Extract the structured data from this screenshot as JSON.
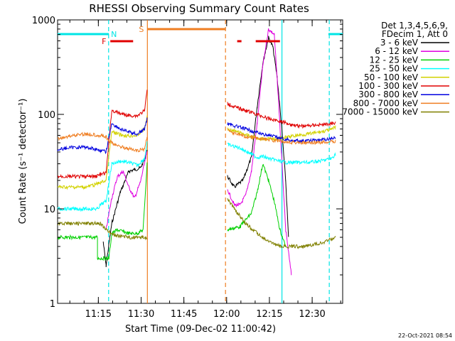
{
  "chart_data": {
    "type": "line",
    "title": "RHESSI Observing Summary Count Rates",
    "xlabel": "Start Time (09-Dec-02 11:00:42)",
    "ylabel": "Count Rate (s⁻¹ detector⁻¹)",
    "yscale": "log",
    "ylim": [
      1,
      1000
    ],
    "xlim_minutes": [
      0,
      100
    ],
    "y_ticks": [
      {
        "value": 1,
        "label": "1"
      },
      {
        "value": 10,
        "label": "10"
      },
      {
        "value": 100,
        "label": "100"
      },
      {
        "value": 1000,
        "label": "1000"
      }
    ],
    "x_ticks": [
      {
        "t": 14.3,
        "label": "11:15"
      },
      {
        "t": 29.3,
        "label": "11:30"
      },
      {
        "t": 44.3,
        "label": "11:45"
      },
      {
        "t": 59.3,
        "label": "12:00"
      },
      {
        "t": 74.3,
        "label": "12:15"
      },
      {
        "t": 89.3,
        "label": "12:30"
      }
    ],
    "legend_header": [
      "Det 1,3,4,5,6,9,",
      "FDecim 1, Att 0"
    ],
    "timestamp": "22-Oct-2021 08:54",
    "status_flags": [
      {
        "label": "N",
        "color": "#00e5e5",
        "segments": [
          [
            0,
            18
          ],
          [
            95,
            100
          ]
        ]
      },
      {
        "label": "F",
        "color": "#e00000",
        "segments": [
          [
            18.5,
            26.5
          ],
          [
            63,
            64.5
          ],
          [
            69.5,
            78
          ]
        ]
      },
      {
        "label": "S",
        "color": "#ef7e22",
        "segments": [
          [
            31.5,
            58.8
          ]
        ]
      }
    ],
    "vertical_markers": [
      {
        "t": 17.9,
        "color": "#00e5e5",
        "style": "dashed"
      },
      {
        "t": 31.5,
        "color": "#ef7e22",
        "style": "solid"
      },
      {
        "t": 58.9,
        "color": "#ef7e22",
        "style": "dashed"
      },
      {
        "t": 78.7,
        "color": "#00e5e5",
        "style": "solid"
      },
      {
        "t": 95.3,
        "color": "#00e5e5",
        "style": "dashed"
      }
    ],
    "data_gap_minutes": [
      31.5,
      59.5
    ],
    "series": [
      {
        "name": "3 - 6 keV",
        "color": "#000000",
        "points": [
          [
            16,
            4.5
          ],
          [
            17,
            2.5
          ],
          [
            19,
            7
          ],
          [
            22,
            15
          ],
          [
            25,
            25
          ],
          [
            27,
            26
          ],
          [
            29,
            27
          ],
          [
            30.5,
            33
          ],
          [
            31.4,
            42
          ],
          [
            59.6,
            22
          ],
          [
            62,
            17
          ],
          [
            65,
            20
          ],
          [
            68,
            35
          ],
          [
            70,
            120
          ],
          [
            72,
            350
          ],
          [
            74,
            650
          ],
          [
            75.5,
            520
          ],
          [
            77,
            250
          ],
          [
            78.5,
            80
          ],
          [
            80,
            20
          ],
          [
            81,
            5
          ]
        ]
      },
      {
        "name": "6 - 12 keV",
        "color": "#e000e0",
        "points": [
          [
            17,
            6
          ],
          [
            19,
            13
          ],
          [
            21,
            22
          ],
          [
            23,
            25
          ],
          [
            25,
            17
          ],
          [
            27,
            13
          ],
          [
            29,
            19
          ],
          [
            31.4,
            40
          ],
          [
            59.6,
            16
          ],
          [
            62,
            11
          ],
          [
            64,
            11
          ],
          [
            66,
            14
          ],
          [
            68,
            25
          ],
          [
            70,
            80
          ],
          [
            72,
            330
          ],
          [
            74,
            800
          ],
          [
            76,
            700
          ],
          [
            77.5,
            140
          ],
          [
            78.5,
            40
          ],
          [
            80,
            6
          ],
          [
            82,
            2
          ]
        ]
      },
      {
        "name": "12 - 25 keV",
        "color": "#00d000",
        "points": [
          [
            0,
            5
          ],
          [
            5,
            5
          ],
          [
            10,
            5
          ],
          [
            14,
            5
          ],
          [
            14,
            3
          ],
          [
            17,
            3
          ],
          [
            18,
            3
          ],
          [
            19,
            5.5
          ],
          [
            21,
            6
          ],
          [
            25,
            5.5
          ],
          [
            28,
            5.5
          ],
          [
            30,
            6
          ],
          [
            31.4,
            30
          ],
          [
            59.6,
            6
          ],
          [
            64,
            6.5
          ],
          [
            68,
            9
          ],
          [
            70,
            15
          ],
          [
            72,
            30
          ],
          [
            74,
            20
          ],
          [
            76,
            12
          ],
          [
            78,
            6
          ],
          [
            80,
            4
          ]
        ]
      },
      {
        "name": "25 - 50 keV",
        "color": "#00ffff",
        "points": [
          [
            0,
            10
          ],
          [
            5,
            10
          ],
          [
            10,
            10
          ],
          [
            14,
            10
          ],
          [
            15,
            11
          ],
          [
            17,
            12
          ],
          [
            19,
            30
          ],
          [
            22,
            32
          ],
          [
            25,
            31
          ],
          [
            28,
            29
          ],
          [
            30.5,
            34
          ],
          [
            31.4,
            50
          ],
          [
            59.6,
            48
          ],
          [
            64,
            44
          ],
          [
            68,
            38
          ],
          [
            70,
            35
          ],
          [
            72,
            36
          ],
          [
            74,
            34
          ],
          [
            76,
            33
          ],
          [
            80,
            31
          ],
          [
            84,
            31
          ],
          [
            88,
            31
          ],
          [
            92,
            32
          ],
          [
            96,
            34
          ],
          [
            97.5,
            38
          ]
        ]
      },
      {
        "name": "50 - 100 keV",
        "color": "#d2d200",
        "points": [
          [
            0,
            17
          ],
          [
            5,
            17
          ],
          [
            10,
            17
          ],
          [
            13,
            18
          ],
          [
            17,
            20
          ],
          [
            19,
            65
          ],
          [
            22,
            61
          ],
          [
            25,
            59
          ],
          [
            28,
            60
          ],
          [
            30.5,
            70
          ],
          [
            31.4,
            95
          ],
          [
            59.6,
            70
          ],
          [
            64,
            64
          ],
          [
            68,
            58
          ],
          [
            72,
            55
          ],
          [
            76,
            55
          ],
          [
            80,
            57
          ],
          [
            84,
            60
          ],
          [
            88,
            62
          ],
          [
            92,
            65
          ],
          [
            96,
            69
          ],
          [
            97.5,
            74
          ]
        ]
      },
      {
        "name": "100 - 300 keV",
        "color": "#e00000",
        "points": [
          [
            0,
            22
          ],
          [
            5,
            22
          ],
          [
            10,
            22
          ],
          [
            13,
            22
          ],
          [
            17,
            24
          ],
          [
            19,
            110
          ],
          [
            22,
            102
          ],
          [
            25,
            97
          ],
          [
            28,
            97
          ],
          [
            30.5,
            110
          ],
          [
            31.4,
            180
          ],
          [
            59.6,
            130
          ],
          [
            62,
            120
          ],
          [
            66,
            110
          ],
          [
            70,
            100
          ],
          [
            74,
            90
          ],
          [
            78,
            85
          ],
          [
            82,
            78
          ],
          [
            86,
            75
          ],
          [
            90,
            77
          ],
          [
            94,
            78
          ],
          [
            97.5,
            82
          ]
        ]
      },
      {
        "name": "300 - 800 keV",
        "color": "#0000e0",
        "points": [
          [
            0,
            42
          ],
          [
            3,
            44
          ],
          [
            7,
            45
          ],
          [
            10,
            45
          ],
          [
            13,
            43
          ],
          [
            17,
            40
          ],
          [
            19,
            80
          ],
          [
            22,
            70
          ],
          [
            25,
            65
          ],
          [
            28,
            62
          ],
          [
            30.5,
            70
          ],
          [
            31.4,
            90
          ],
          [
            59.6,
            80
          ],
          [
            62,
            76
          ],
          [
            66,
            70
          ],
          [
            70,
            64
          ],
          [
            74,
            60
          ],
          [
            78,
            56
          ],
          [
            82,
            53
          ],
          [
            86,
            52
          ],
          [
            90,
            53
          ],
          [
            94,
            54
          ],
          [
            97.5,
            57
          ]
        ]
      },
      {
        "name": "800 - 7000 keV",
        "color": "#ef7e22",
        "points": [
          [
            0,
            55
          ],
          [
            3,
            58
          ],
          [
            7,
            61
          ],
          [
            10,
            62
          ],
          [
            13,
            61
          ],
          [
            17,
            58
          ],
          [
            18,
            52
          ],
          [
            20,
            48
          ],
          [
            24,
            44
          ],
          [
            28,
            41
          ],
          [
            30.5,
            43
          ],
          [
            31.4,
            60
          ],
          [
            59.6,
            68
          ],
          [
            62,
            63
          ],
          [
            66,
            58
          ],
          [
            70,
            56
          ],
          [
            74,
            54
          ],
          [
            78,
            52
          ],
          [
            82,
            51
          ],
          [
            86,
            50
          ],
          [
            90,
            50
          ],
          [
            94,
            51
          ],
          [
            97.5,
            52
          ]
        ]
      },
      {
        "name": "7000 - 15000 keV",
        "color": "#808000",
        "points": [
          [
            0,
            7
          ],
          [
            5,
            7
          ],
          [
            10,
            7
          ],
          [
            13,
            7
          ],
          [
            15,
            7
          ],
          [
            17,
            6
          ],
          [
            20,
            5.3
          ],
          [
            25,
            5
          ],
          [
            30,
            5
          ],
          [
            31.4,
            5
          ],
          [
            59.6,
            13
          ],
          [
            62,
            10
          ],
          [
            66,
            7
          ],
          [
            70,
            5.5
          ],
          [
            74,
            4.5
          ],
          [
            78,
            4
          ],
          [
            82,
            4
          ],
          [
            86,
            4
          ],
          [
            90,
            4.2
          ],
          [
            94,
            4.5
          ],
          [
            97.5,
            5
          ]
        ]
      }
    ]
  }
}
